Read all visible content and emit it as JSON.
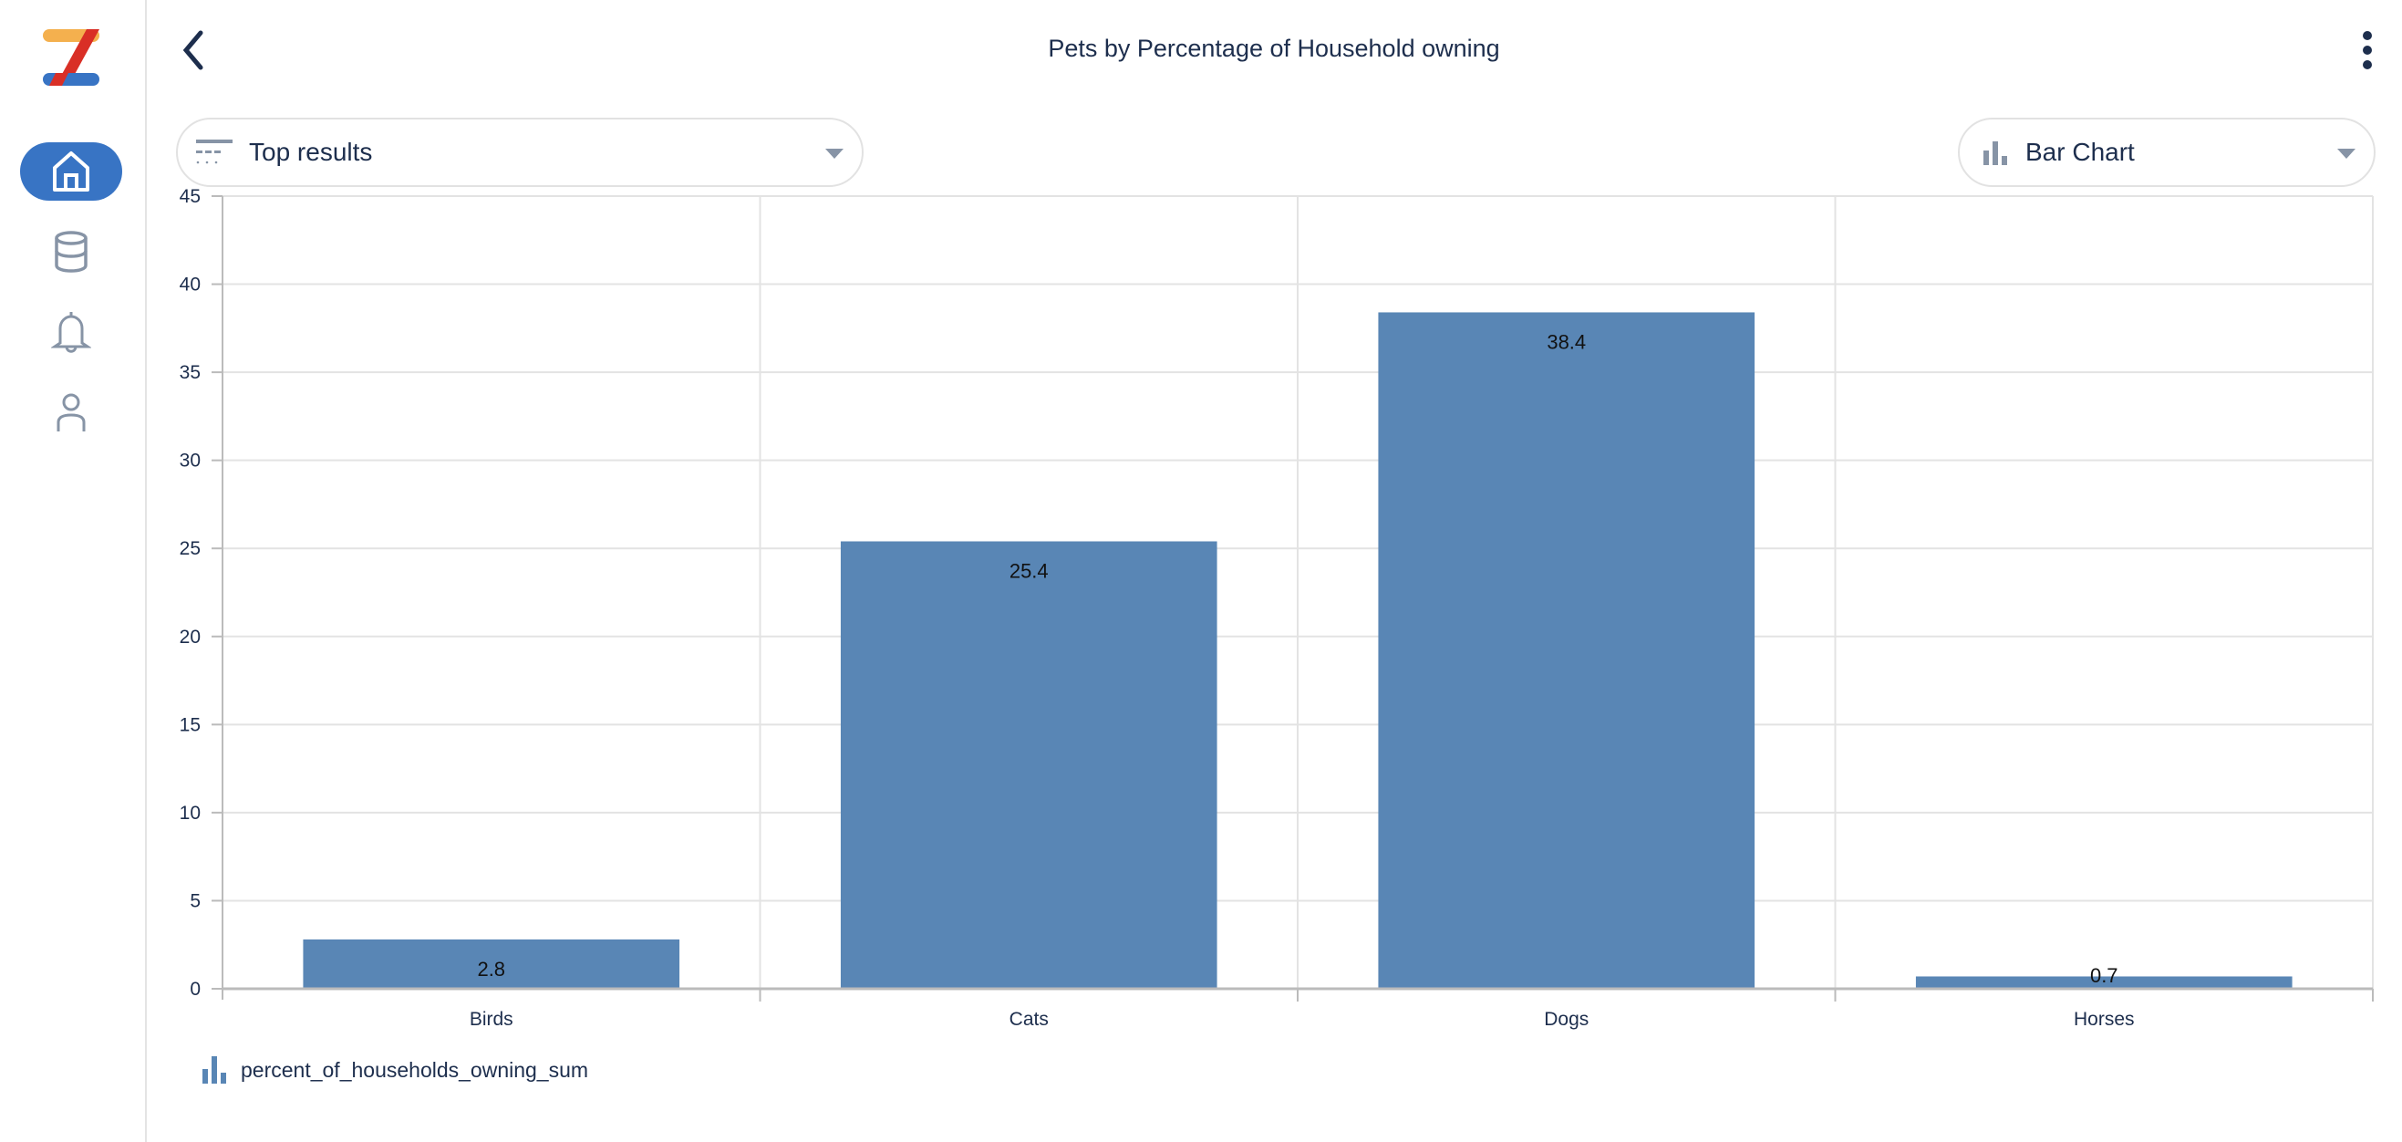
{
  "header": {
    "title": "Pets by Percentage of Household owning"
  },
  "controls": {
    "results_filter": {
      "label": "Top results",
      "icon": "filter-lines-icon"
    },
    "chart_type": {
      "label": "Bar Chart",
      "icon": "bar-chart-icon"
    }
  },
  "sidebar": {
    "items": [
      {
        "name": "home",
        "icon": "home-icon",
        "active": true
      },
      {
        "name": "database",
        "icon": "database-icon"
      },
      {
        "name": "notifications",
        "icon": "bell-icon"
      },
      {
        "name": "profile",
        "icon": "user-icon"
      }
    ]
  },
  "colors": {
    "bar": "#5986b5",
    "accent": "#3874c4"
  },
  "chart_data": {
    "type": "bar",
    "title": "Pets by Percentage of Household owning",
    "categories": [
      "Birds",
      "Cats",
      "Dogs",
      "Horses"
    ],
    "series": [
      {
        "name": "percent_of_households_owning_sum",
        "values": [
          2.8,
          25.4,
          38.4,
          0.7
        ]
      }
    ],
    "data_labels": [
      "2.8",
      "25.4",
      "38.4",
      "0.7"
    ],
    "ylim": [
      0,
      45
    ],
    "yticks": [
      0,
      5,
      10,
      15,
      20,
      25,
      30,
      35,
      40,
      45
    ],
    "grid": true,
    "legend": "bottom-left"
  }
}
